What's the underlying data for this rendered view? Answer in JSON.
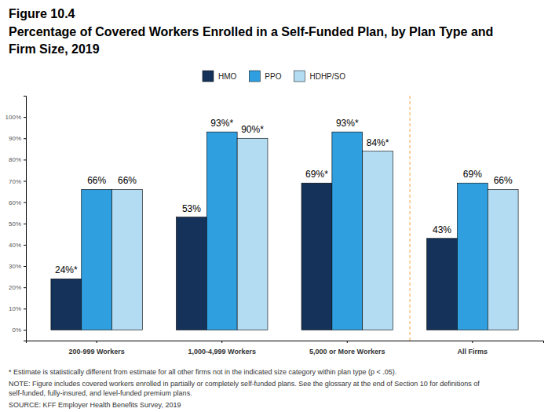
{
  "chart_data": {
    "type": "bar",
    "title": "Figure 10.4",
    "subtitle": "Percentage of Covered Workers Enrolled in a Self-Funded Plan, by Plan Type and Firm Size, 2019",
    "categories": [
      "200-999 Workers",
      "1,000-4,999 Workers",
      "5,000 or More Workers",
      "All Firms"
    ],
    "series": [
      {
        "name": "HMO",
        "color": "#14325a",
        "values": [
          24,
          53,
          69,
          43
        ],
        "value_labels": [
          "24%*",
          "53%",
          "69%*",
          "43%"
        ]
      },
      {
        "name": "PPO",
        "color": "#2f9fe0",
        "values": [
          66,
          93,
          93,
          69
        ],
        "value_labels": [
          "66%",
          "93%*",
          "93%*",
          "69%"
        ]
      },
      {
        "name": "HDHP/SO",
        "color": "#b3dcf2",
        "values": [
          66,
          90,
          84,
          66
        ],
        "value_labels": [
          "66%",
          "90%*",
          "84%*",
          "66%"
        ]
      }
    ],
    "ylim": [
      -5,
      110
    ],
    "yticks": [
      {
        "value": 0,
        "label": "0%"
      },
      {
        "value": 10,
        "label": "10%"
      },
      {
        "value": 20,
        "label": "20%"
      },
      {
        "value": 30,
        "label": "30%"
      },
      {
        "value": 40,
        "label": "40%"
      },
      {
        "value": 50,
        "label": "50%"
      },
      {
        "value": 60,
        "label": "60%"
      },
      {
        "value": 70,
        "label": "70%"
      },
      {
        "value": 80,
        "label": "80%"
      },
      {
        "value": 90,
        "label": "90%"
      },
      {
        "value": 100,
        "label": "100%"
      }
    ],
    "grid": false,
    "legend": "top",
    "data_labels": true,
    "annotations": [
      "* Estimate is statistically different from estimate for all other firms not in the indicated size category within plan type (p < .05).",
      "NOTE: Figure includes covered workers enrolled in partially or completely self-funded plans. See the glossary at the end of Section 10 for definitions of self-funded, fully-insured, and level-funded premium plans.",
      "SOURCE: KFF Employer Health Benefits Survey, 2019"
    ]
  }
}
